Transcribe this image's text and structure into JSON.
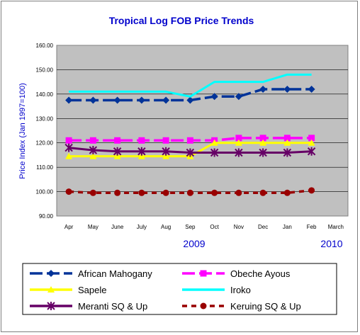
{
  "chart_data": {
    "type": "line",
    "title": "Tropical Log FOB Price Trends",
    "ylabel": "Price Index (Jan 1997=100)",
    "xlabel": "",
    "categories": [
      "Apr",
      "May",
      "June",
      "July",
      "Aug",
      "Sep",
      "Oct",
      "Nov",
      "Dec",
      "Jan",
      "Feb",
      "March"
    ],
    "year_labels": [
      "2009",
      "2010"
    ],
    "ylim": [
      90,
      160
    ],
    "yticks": [
      "90.00",
      "100.00",
      "110.00",
      "120.00",
      "130.00",
      "140.00",
      "150.00",
      "160.00"
    ],
    "grid": true,
    "legend_position": "bottom",
    "plot_background": "#c0c0c0",
    "series": [
      {
        "name": "African Mahogany",
        "color": "#003399",
        "marker": "diamond",
        "dash": "long",
        "values": [
          137.5,
          137.5,
          137.5,
          137.5,
          137.5,
          137.5,
          139,
          139,
          142,
          142,
          142,
          null
        ]
      },
      {
        "name": "Obeche Ayous",
        "color": "#ff00ff",
        "marker": "square",
        "dash": "long",
        "values": [
          121,
          121,
          121,
          121,
          121,
          121,
          121,
          122,
          122,
          122,
          122,
          null
        ]
      },
      {
        "name": "Sapele",
        "color": "#ffff00",
        "marker": "triangle",
        "dash": "solid",
        "values": [
          114.5,
          114.5,
          114.5,
          114.5,
          114.5,
          114.5,
          120,
          120,
          120,
          120,
          120,
          null
        ]
      },
      {
        "name": "Iroko",
        "color": "#00ffff",
        "marker": "none",
        "dash": "solid",
        "values": [
          141,
          141,
          141,
          141,
          141,
          139,
          145,
          145,
          145,
          148,
          148,
          null
        ]
      },
      {
        "name": "Meranti SQ & Up",
        "color": "#660066",
        "marker": "star",
        "dash": "solid",
        "values": [
          118,
          117,
          116.5,
          116.5,
          116.5,
          116,
          116,
          116,
          116,
          116,
          116.5,
          null
        ]
      },
      {
        "name": "Keruing SQ & Up",
        "color": "#990000",
        "marker": "circle",
        "dash": "short",
        "values": [
          100,
          99.5,
          99.5,
          99.5,
          99.5,
          99.5,
          99.5,
          99.5,
          99.5,
          99.5,
          100.5,
          null
        ]
      }
    ]
  }
}
